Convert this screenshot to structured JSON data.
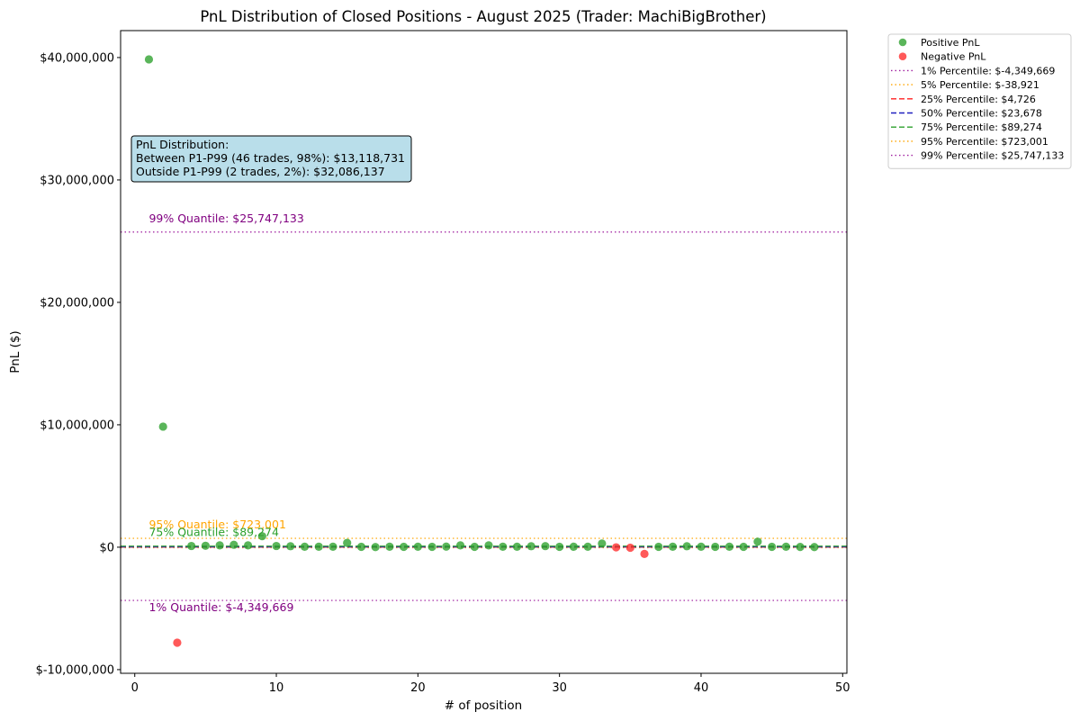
{
  "chart_data": {
    "type": "scatter",
    "title": "PnL Distribution of Closed Positions - August 2025 (Trader: MachiBigBrother)",
    "xlabel": "# of position",
    "ylabel": "PnL ($)",
    "xlim": [
      -1,
      50.3
    ],
    "ylim": [
      -10300000,
      42200000
    ],
    "x_ticks": [
      0,
      10,
      20,
      30,
      40,
      50
    ],
    "y_ticks": [
      {
        "value": -10000000,
        "label": "$-10,000,000"
      },
      {
        "value": 0,
        "label": "$0"
      },
      {
        "value": 10000000,
        "label": "$10,000,000"
      },
      {
        "value": 20000000,
        "label": "$20,000,000"
      },
      {
        "value": 30000000,
        "label": "$30,000,000"
      },
      {
        "value": 40000000,
        "label": "$40,000,000"
      }
    ],
    "grid": false,
    "legend_placement": "outside upper right",
    "series": [
      {
        "name": "Positive PnL",
        "color": "#2ca02c",
        "x": [
          1,
          2,
          4,
          5,
          6,
          7,
          8,
          9,
          10,
          11,
          12,
          13,
          14,
          15,
          16,
          17,
          18,
          19,
          20,
          21,
          22,
          23,
          24,
          25,
          26,
          27,
          28,
          29,
          30,
          31,
          32,
          33,
          37,
          38,
          39,
          40,
          41,
          42,
          43,
          44,
          45,
          46,
          47,
          48
        ],
        "y": [
          39850000,
          9850000,
          100000,
          120000,
          150000,
          200000,
          150000,
          900000,
          100000,
          80000,
          40000,
          40000,
          40000,
          350000,
          30000,
          10000,
          40000,
          30000,
          40000,
          30000,
          50000,
          150000,
          30000,
          150000,
          40000,
          40000,
          80000,
          90000,
          30000,
          40000,
          40000,
          300000,
          30000,
          40000,
          80000,
          40000,
          30000,
          40000,
          30000,
          450000,
          30000,
          40000,
          20000,
          10000
        ]
      },
      {
        "name": "Negative PnL",
        "color": "#ff2a2a",
        "x": [
          3,
          34,
          35,
          36
        ],
        "y": [
          -7800000,
          -10000,
          -40000,
          -550000
        ]
      }
    ],
    "reference_lines": [
      {
        "label": "1% Percentile: $-4,349,669",
        "value": -4349669,
        "color": "#a020a0",
        "dash": "dotted"
      },
      {
        "label": "5% Percentile: $-38,921",
        "value": -38921,
        "color": "#ffa500",
        "dash": "dotted"
      },
      {
        "label": "25% Percentile: $4,726",
        "value": 4726,
        "color": "#ff2020",
        "dash": "dashed"
      },
      {
        "label": "50% Percentile: $23,678",
        "value": 23678,
        "color": "#2020c0",
        "dash": "dashed"
      },
      {
        "label": "75% Percentile: $89,274",
        "value": 89274,
        "color": "#2ca02c",
        "dash": "dashed"
      },
      {
        "label": "95% Percentile: $723,001",
        "value": 723001,
        "color": "#ffa500",
        "dash": "dotted"
      },
      {
        "label": "99% Percentile: $25,747,133",
        "value": 25747133,
        "color": "#a020a0",
        "dash": "dotted"
      }
    ],
    "annotations": [
      {
        "text": "99% Quantile: $25,747,133",
        "y": 25747133,
        "color": "#800080",
        "position": "above"
      },
      {
        "text": "95% Quantile: $723,001",
        "y": 723001,
        "color": "#ffa500",
        "position": "above"
      },
      {
        "text": "75% Quantile: $89,274",
        "y": 89274,
        "color": "#2ca02c",
        "position": "above"
      },
      {
        "text": "1% Quantile: $-4,349,669",
        "y": -4349669,
        "color": "#800080",
        "position": "below"
      }
    ],
    "info_box": {
      "lines": [
        "PnL Distribution:",
        "Between P1-P99 (46 trades, 98%): $13,118,731",
        "Outside P1-P99 (2 trades, 2%): $32,086,137"
      ],
      "background": "#add8e6"
    }
  }
}
